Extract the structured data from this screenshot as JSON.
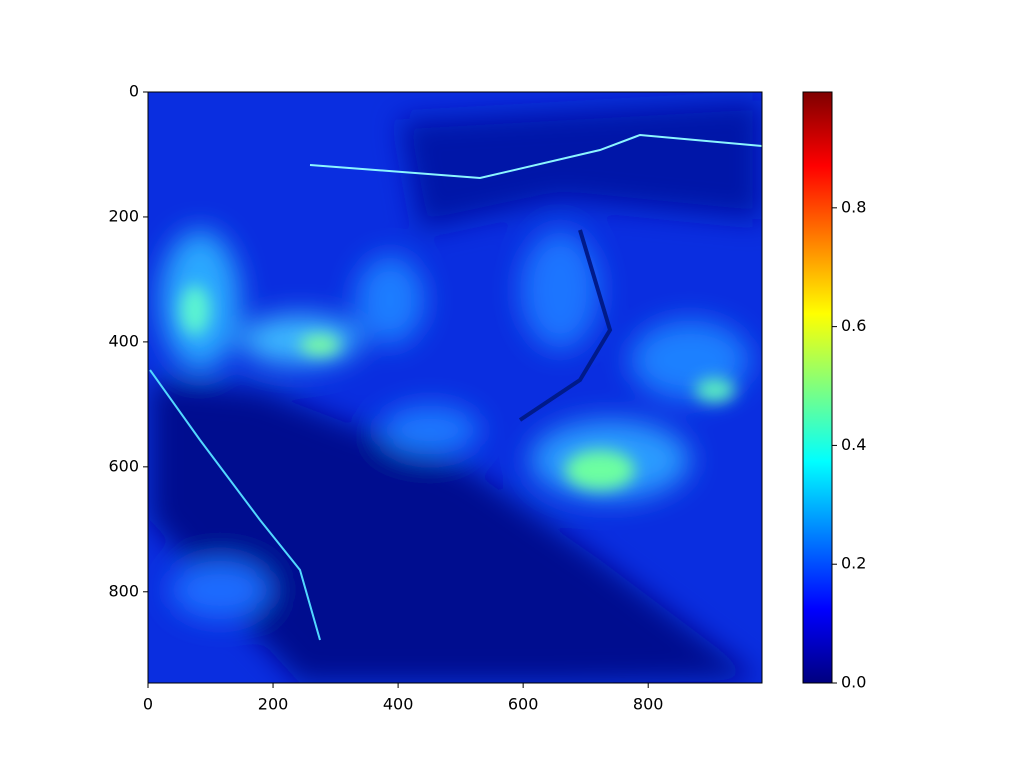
{
  "chart_data": {
    "type": "heatmap",
    "xlim": [
      0,
      982
    ],
    "ylim": [
      946,
      0
    ],
    "xticks": [
      0,
      200,
      400,
      600,
      800
    ],
    "yticks": [
      0,
      200,
      400,
      600,
      800
    ],
    "colorbar": {
      "cmap": "jet",
      "colors": [
        "#00007f",
        "#0000ff",
        "#007fff",
        "#00ffff",
        "#7fff7f",
        "#ffff00",
        "#ff7f00",
        "#ff0000",
        "#7f0000"
      ],
      "clim": [
        0,
        0.995
      ],
      "ticks": [
        {
          "value": 0,
          "label": "0.0"
        },
        0.2,
        0.4,
        0.6,
        0.8
      ]
    }
  }
}
